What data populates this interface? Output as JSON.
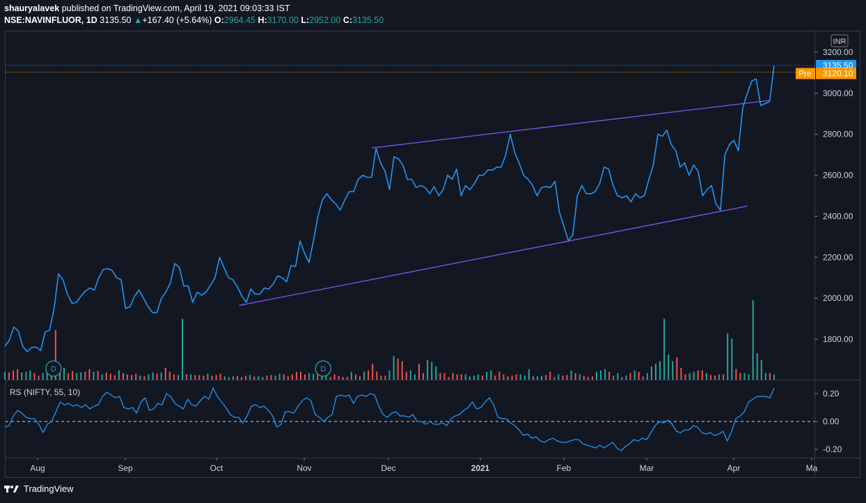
{
  "header": {
    "publisher_line": "shauryalavek published on TradingView.com, April 19, 2021 09:03:33 IST",
    "user": "shauryalavek",
    "publish_text": "published on TradingView.com, April 19, 2021 09:03:33 IST",
    "symbol": "NSE:NAVINFLUOR, 1D",
    "last": "3135.50",
    "change_arrow": "▲",
    "change": "+167.40 (+5.64%)",
    "open_label": "O:",
    "open": "2964.45",
    "high_label": "H:",
    "high": "3170.00",
    "low_label": "L:",
    "low": "2952.00",
    "close_label": "C:",
    "close": "3135.50"
  },
  "footer": {
    "brand": "TradingView"
  },
  "colors": {
    "background": "#131722",
    "price_line": "#2196f3",
    "trendline": "#673ab7",
    "volume_up": "#26a69a",
    "volume_down": "#ef5350",
    "last_label": "#2196f3",
    "pre_label": "#ff9800",
    "axis_text": "#d1d4dc"
  },
  "chart_data": {
    "type": "line",
    "currency": "INR",
    "price_axis": {
      "ticks": [
        "3200.00",
        "3000.00",
        "2800.00",
        "2600.00",
        "2400.00",
        "2200.00",
        "2000.00",
        "1800.00"
      ],
      "ylim": [
        1590,
        3300
      ],
      "last_price_label": "3135.50",
      "pre_badge": "Pre",
      "pre_price_label": "3120.10"
    },
    "time_axis": {
      "labels": [
        "Aug",
        "Sep",
        "Oct",
        "Nov",
        "Dec",
        "2021",
        "Feb",
        "Mar",
        "Apr",
        "Ma"
      ]
    },
    "price_series": {
      "name": "NSE:NAVINFLUOR",
      "values": [
        1765,
        1795,
        1860,
        1840,
        1765,
        1740,
        1760,
        1762,
        1745,
        1835,
        1845,
        1950,
        2120,
        2090,
        2020,
        1975,
        1980,
        2010,
        2035,
        2050,
        2040,
        2100,
        2140,
        2145,
        2135,
        2100,
        2090,
        1950,
        1960,
        2010,
        2040,
        2000,
        1960,
        1930,
        1930,
        2000,
        2030,
        2075,
        2170,
        2150,
        2060,
        2060,
        1980,
        2030,
        2015,
        2030,
        2065,
        2100,
        2200,
        2150,
        2100,
        2090,
        2055,
        2010,
        1980,
        2045,
        2020,
        2020,
        2050,
        2045,
        2070,
        2110,
        2100,
        2080,
        2160,
        2155,
        2280,
        2220,
        2175,
        2280,
        2400,
        2480,
        2510,
        2480,
        2460,
        2430,
        2480,
        2520,
        2520,
        2580,
        2600,
        2590,
        2590,
        2730,
        2660,
        2620,
        2530,
        2690,
        2680,
        2650,
        2580,
        2580,
        2540,
        2550,
        2540,
        2510,
        2545,
        2500,
        2530,
        2600,
        2580,
        2630,
        2500,
        2550,
        2530,
        2560,
        2600,
        2600,
        2625,
        2625,
        2640,
        2640,
        2700,
        2800,
        2710,
        2660,
        2600,
        2580,
        2550,
        2500,
        2540,
        2545,
        2540,
        2570,
        2420,
        2350,
        2280,
        2310,
        2500,
        2550,
        2510,
        2510,
        2520,
        2560,
        2640,
        2630,
        2550,
        2500,
        2490,
        2500,
        2470,
        2510,
        2490,
        2500,
        2580,
        2650,
        2800,
        2790,
        2820,
        2750,
        2720,
        2640,
        2660,
        2600,
        2650,
        2620,
        2500,
        2530,
        2550,
        2460,
        2430,
        2700,
        2750,
        2770,
        2720,
        2930,
        3000,
        3060,
        3070,
        2940,
        2950,
        2960,
        3135
      ],
      "xlim": [
        0,
        174
      ]
    },
    "volume_series": {
      "name": "Volume",
      "values": [
        [
          12,
          1
        ],
        [
          11,
          0
        ],
        [
          14,
          0
        ],
        [
          16,
          0
        ],
        [
          11,
          1
        ],
        [
          12,
          1
        ],
        [
          14,
          1
        ],
        [
          10,
          0
        ],
        [
          6,
          0
        ],
        [
          10,
          1
        ],
        [
          14,
          1
        ],
        [
          11,
          1
        ],
        [
          75,
          0
        ],
        [
          12,
          1
        ],
        [
          18,
          1
        ],
        [
          10,
          0
        ],
        [
          13,
          0
        ],
        [
          10,
          1
        ],
        [
          11,
          1
        ],
        [
          12,
          0
        ],
        [
          16,
          0
        ],
        [
          12,
          1
        ],
        [
          13,
          0
        ],
        [
          8,
          1
        ],
        [
          11,
          0
        ],
        [
          9,
          0
        ],
        [
          7,
          0
        ],
        [
          14,
          1
        ],
        [
          10,
          0
        ],
        [
          8,
          0
        ],
        [
          7,
          0
        ],
        [
          9,
          0
        ],
        [
          6,
          1
        ],
        [
          5,
          0
        ],
        [
          8,
          1
        ],
        [
          11,
          1
        ],
        [
          9,
          0
        ],
        [
          11,
          1
        ],
        [
          18,
          0
        ],
        [
          12,
          0
        ],
        [
          8,
          0
        ],
        [
          7,
          1
        ],
        [
          92,
          1
        ],
        [
          8,
          0
        ],
        [
          8,
          1
        ],
        [
          7,
          0
        ],
        [
          7,
          0
        ],
        [
          6,
          0
        ],
        [
          9,
          1
        ],
        [
          6,
          0
        ],
        [
          7,
          0
        ],
        [
          9,
          0
        ],
        [
          5,
          1
        ],
        [
          4,
          1
        ],
        [
          5,
          1
        ],
        [
          6,
          0
        ],
        [
          4,
          0
        ],
        [
          6,
          0
        ],
        [
          7,
          1
        ],
        [
          5,
          0
        ],
        [
          5,
          1
        ],
        [
          4,
          1
        ],
        [
          6,
          0
        ],
        [
          7,
          0
        ],
        [
          6,
          1
        ],
        [
          9,
          1
        ],
        [
          8,
          0
        ],
        [
          5,
          0
        ],
        [
          8,
          0
        ],
        [
          12,
          0
        ],
        [
          12,
          0
        ],
        [
          8,
          0
        ],
        [
          10,
          1
        ],
        [
          9,
          1
        ],
        [
          10,
          0
        ],
        [
          14,
          1
        ],
        [
          9,
          1
        ],
        [
          4,
          0
        ],
        [
          8,
          0
        ],
        [
          6,
          0
        ],
        [
          4,
          0
        ],
        [
          4,
          0
        ],
        [
          12,
          1
        ],
        [
          8,
          0
        ],
        [
          5,
          0
        ],
        [
          12,
          1
        ],
        [
          14,
          0
        ],
        [
          24,
          0
        ],
        [
          12,
          0
        ],
        [
          6,
          0
        ],
        [
          6,
          0
        ],
        [
          14,
          1
        ],
        [
          36,
          1
        ],
        [
          32,
          0
        ],
        [
          28,
          0
        ],
        [
          12,
          0
        ],
        [
          14,
          1
        ],
        [
          8,
          1
        ],
        [
          24,
          0
        ],
        [
          10,
          0
        ],
        [
          30,
          1
        ],
        [
          27,
          1
        ],
        [
          20,
          1
        ],
        [
          10,
          0
        ],
        [
          10,
          0
        ],
        [
          4,
          0
        ],
        [
          10,
          0
        ],
        [
          8,
          0
        ],
        [
          8,
          0
        ],
        [
          8,
          1
        ],
        [
          5,
          1
        ],
        [
          6,
          1
        ],
        [
          8,
          1
        ],
        [
          6,
          0
        ],
        [
          12,
          1
        ],
        [
          14,
          1
        ],
        [
          6,
          0
        ],
        [
          12,
          0
        ],
        [
          8,
          0
        ],
        [
          5,
          0
        ],
        [
          6,
          0
        ],
        [
          8,
          0
        ],
        [
          8,
          1
        ],
        [
          6,
          1
        ],
        [
          16,
          1
        ],
        [
          5,
          0
        ],
        [
          5,
          1
        ],
        [
          6,
          1
        ],
        [
          7,
          0
        ],
        [
          12,
          0
        ],
        [
          4,
          1
        ],
        [
          8,
          1
        ],
        [
          6,
          0
        ],
        [
          7,
          0
        ],
        [
          14,
          1
        ],
        [
          10,
          0
        ],
        [
          8,
          1
        ],
        [
          6,
          0
        ],
        [
          4,
          0
        ],
        [
          5,
          0
        ],
        [
          12,
          1
        ],
        [
          14,
          1
        ],
        [
          16,
          1
        ],
        [
          12,
          0
        ],
        [
          6,
          1
        ],
        [
          10,
          1
        ],
        [
          4,
          1
        ],
        [
          6,
          1
        ],
        [
          10,
          0
        ],
        [
          14,
          1
        ],
        [
          12,
          0
        ],
        [
          5,
          0
        ],
        [
          10,
          1
        ],
        [
          20,
          1
        ],
        [
          24,
          1
        ],
        [
          28,
          1
        ],
        [
          92,
          1
        ],
        [
          38,
          1
        ],
        [
          28,
          1
        ],
        [
          34,
          0
        ],
        [
          18,
          0
        ],
        [
          8,
          0
        ],
        [
          10,
          1
        ],
        [
          12,
          1
        ],
        [
          14,
          0
        ],
        [
          14,
          0
        ],
        [
          10,
          1
        ],
        [
          7,
          0
        ],
        [
          6,
          0
        ],
        [
          8,
          1
        ],
        [
          8,
          0
        ],
        [
          70,
          1
        ],
        [
          62,
          1
        ],
        [
          16,
          0
        ],
        [
          10,
          0
        ],
        [
          10,
          1
        ],
        [
          8,
          1
        ],
        [
          120,
          1
        ],
        [
          40,
          1
        ],
        [
          30,
          1
        ],
        [
          10,
          1
        ],
        [
          10,
          0
        ],
        [
          8,
          1
        ]
      ]
    },
    "trendlines": [
      {
        "name": "upper",
        "points": [
          [
            83,
            2733
          ],
          [
            173,
            2965
          ]
        ]
      },
      {
        "name": "lower",
        "points": [
          [
            53,
            1965
          ],
          [
            168,
            2450
          ]
        ]
      }
    ],
    "markers": [
      {
        "label": "D",
        "x": 11
      },
      {
        "label": "D",
        "x": 72
      }
    ],
    "indicator": {
      "label": "RS (NIFTY, 55, 10)",
      "type": "line",
      "ylim": [
        -0.26,
        0.3
      ],
      "ticks": [
        "0.20",
        "0.00",
        "-0.20"
      ],
      "zero_line": 0,
      "values": [
        -0.04,
        -0.03,
        0.04,
        0.08,
        0.06,
        0.03,
        0.02,
        0.02,
        -0.02,
        -0.08,
        -0.02,
        0.0,
        0.07,
        0.14,
        0.12,
        0.13,
        0.11,
        0.12,
        0.1,
        0.12,
        0.09,
        0.11,
        0.12,
        0.18,
        0.21,
        0.19,
        0.17,
        0.18,
        0.1,
        0.09,
        0.1,
        0.06,
        0.14,
        0.17,
        0.08,
        0.09,
        0.13,
        0.12,
        0.2,
        0.18,
        0.13,
        0.11,
        0.09,
        0.16,
        0.12,
        0.11,
        0.15,
        0.18,
        0.16,
        0.24,
        0.18,
        0.14,
        0.1,
        0.05,
        0.03,
        0.03,
        -0.01,
        0.04,
        0.11,
        0.12,
        0.1,
        0.11,
        0.08,
        0.04,
        -0.04,
        -0.02,
        0.07,
        0.07,
        0.06,
        0.11,
        0.15,
        0.17,
        0.15,
        0.05,
        0.03,
        0.0,
        0.03,
        0.05,
        0.18,
        0.19,
        0.18,
        0.19,
        0.13,
        0.18,
        0.19,
        0.18,
        0.2,
        0.19,
        0.11,
        0.05,
        0.03,
        0.06,
        0.07,
        0.04,
        0.04,
        0.03,
        0.05,
        0.0,
        0.0,
        -0.02,
        0.0,
        -0.02,
        -0.02,
        -0.01,
        -0.03,
        0.02,
        0.04,
        0.05,
        0.08,
        0.1,
        0.14,
        0.09,
        0.1,
        0.14,
        0.17,
        0.12,
        0.03,
        0.02,
        0.02,
        -0.01,
        -0.03,
        -0.06,
        -0.1,
        -0.09,
        -0.12,
        -0.11,
        -0.14,
        -0.15,
        -0.13,
        -0.12,
        -0.14,
        -0.15,
        -0.15,
        -0.14,
        -0.13,
        -0.13,
        -0.16,
        -0.17,
        -0.18,
        -0.19,
        -0.17,
        -0.19,
        -0.17,
        -0.15,
        -0.19,
        -0.21,
        -0.18,
        -0.16,
        -0.13,
        -0.14,
        -0.12,
        -0.13,
        -0.08,
        -0.03,
        0.0,
        -0.01,
        0.01,
        -0.02,
        -0.07,
        -0.08,
        -0.06,
        -0.06,
        -0.03,
        -0.04,
        -0.08,
        -0.09,
        -0.08,
        -0.1,
        -0.09,
        -0.07,
        -0.14,
        -0.07,
        0.02,
        0.04,
        0.07,
        0.14,
        0.16,
        0.18,
        0.18,
        0.18,
        0.17,
        0.24
      ]
    }
  }
}
